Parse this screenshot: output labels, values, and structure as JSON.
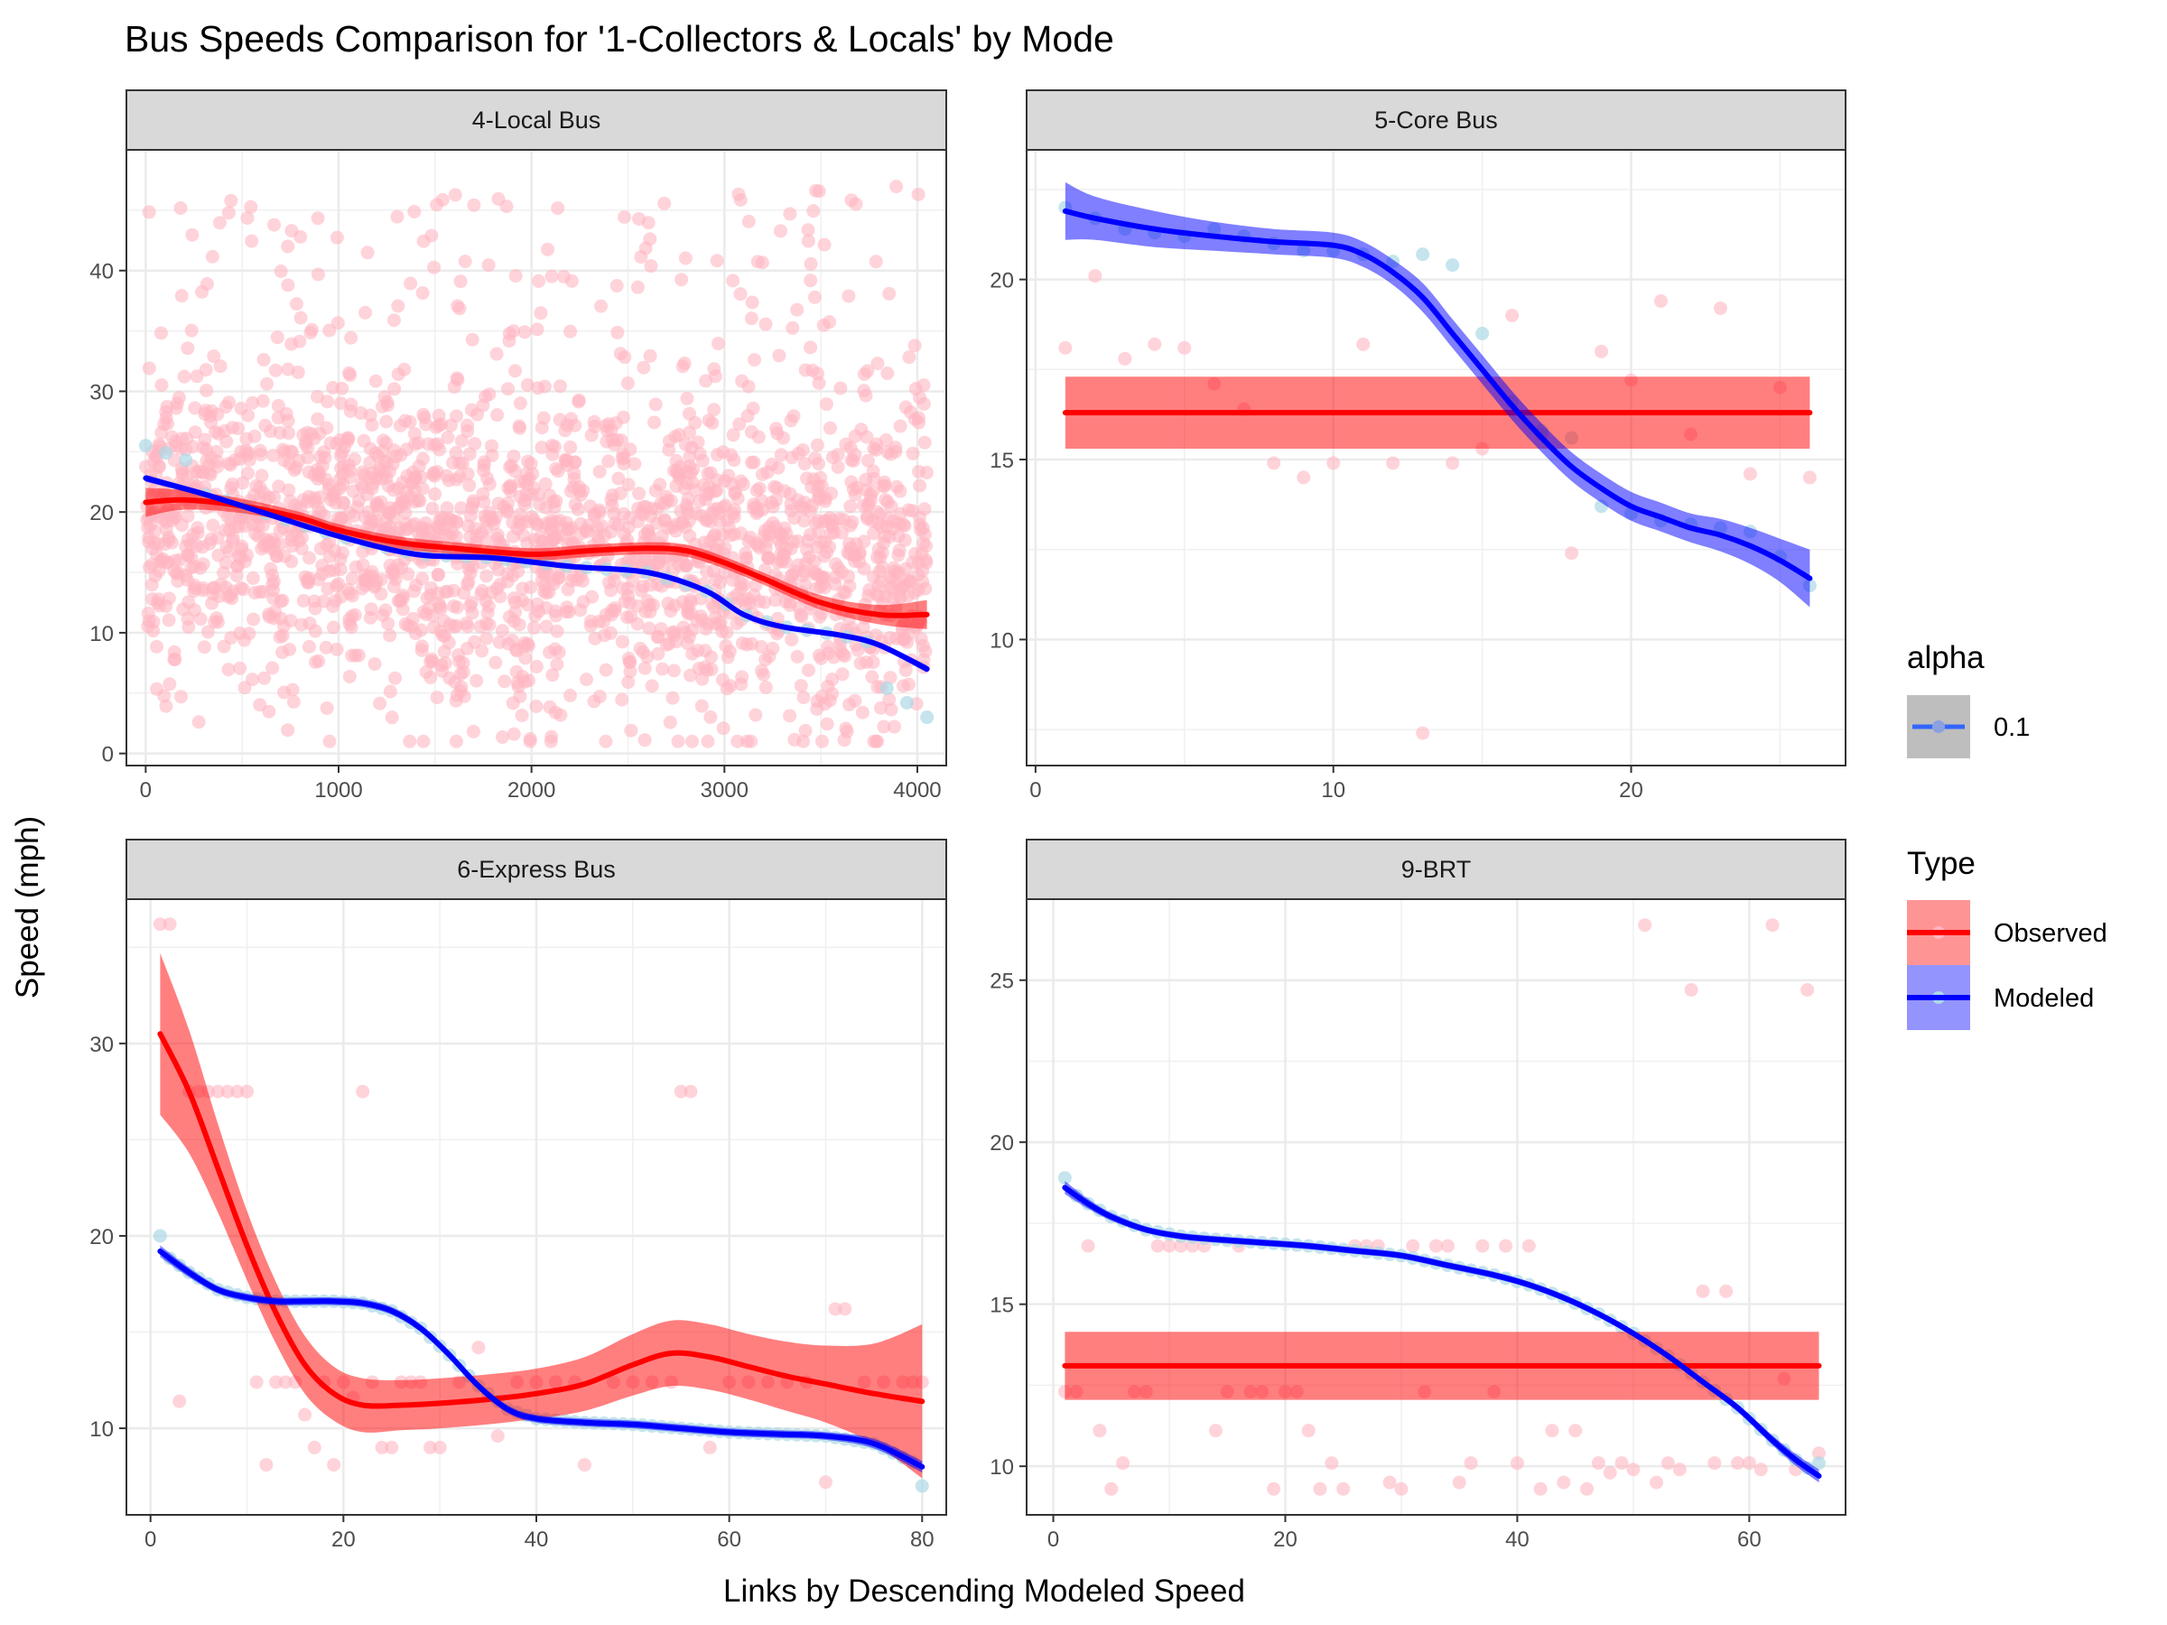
{
  "chart_data": {
    "type": "scatter",
    "title": "Bus Speeds Comparison for '1-Collectors & Locals' by Mode",
    "xlabel": "Links by Descending Modeled Speed",
    "ylabel": "Speed (mph)",
    "legend_placement": "right",
    "grid": true,
    "colors": {
      "observed_points": "#ffb6c1",
      "modeled_points": "#add8e6",
      "observed_line": "#ff0000",
      "modeled_line": "#0000ff",
      "observed_band": "#ff0000",
      "modeled_band": "#0000ff"
    },
    "legends": {
      "alpha": {
        "title": "alpha",
        "entries": [
          "0.1"
        ]
      },
      "type": {
        "title": "Type",
        "entries": [
          "Observed",
          "Modeled"
        ]
      }
    },
    "facets": [
      {
        "name": "4-Local Bus",
        "xlim": [
          -100,
          4150
        ],
        "ylim": [
          -1,
          50
        ],
        "x_ticks": [
          0,
          1000,
          2000,
          3000,
          4000
        ],
        "y_ticks": [
          0,
          10,
          20,
          30,
          40
        ],
        "observed_smooth": {
          "x": [
            0,
            200,
            500,
            800,
            1000,
            1300,
            1600,
            2000,
            2300,
            2600,
            2800,
            3000,
            3200,
            3500,
            3800,
            4050
          ],
          "y": [
            20.8,
            21,
            20.5,
            19.5,
            18.5,
            17.5,
            17,
            16.5,
            16.8,
            17,
            16.8,
            15.8,
            14.5,
            12.5,
            11.5,
            11.5
          ],
          "band": [
            1.2,
            0.8,
            0.6,
            0.5,
            0.5,
            0.5,
            0.5,
            0.5,
            0.5,
            0.5,
            0.5,
            0.5,
            0.5,
            0.6,
            0.8,
            1.2
          ]
        },
        "modeled_smooth": {
          "x": [
            0,
            300,
            600,
            1000,
            1400,
            1800,
            2200,
            2600,
            2900,
            3100,
            3300,
            3600,
            3800,
            4050
          ],
          "y": [
            22.8,
            21.5,
            20,
            18,
            16.5,
            16.2,
            15.5,
            15,
            13.5,
            11.5,
            10.5,
            9.8,
            9,
            7
          ],
          "band": [
            0.3,
            0.2,
            0.2,
            0.2,
            0.2,
            0.2,
            0.2,
            0.2,
            0.2,
            0.2,
            0.2,
            0.2,
            0.2,
            0.3
          ]
        },
        "observed_points": {
          "n": 2200,
          "xmax": 4050,
          "y_center": 19,
          "y_spread": 6.5,
          "y_min": 1,
          "y_max": 47.5
        },
        "modeled_points": {
          "n": 40,
          "xmax": 4050,
          "y_start": 25.5,
          "y_end": 3
        }
      },
      {
        "name": "5-Core Bus",
        "xlim": [
          -0.3,
          27.2
        ],
        "ylim": [
          6.5,
          23.6
        ],
        "x_ticks": [
          0,
          10,
          20
        ],
        "y_ticks": [
          10,
          15,
          20
        ],
        "observed_smooth": {
          "x": [
            1,
            26
          ],
          "y": [
            16.3,
            16.3
          ],
          "band": [
            1,
            1
          ]
        },
        "modeled_smooth": {
          "x": [
            1,
            2,
            4,
            6,
            8,
            10,
            11,
            12,
            13,
            14,
            15,
            16,
            17,
            18,
            19,
            20,
            21,
            22,
            23,
            24,
            25,
            26
          ],
          "y": [
            21.9,
            21.7,
            21.4,
            21.2,
            21.05,
            20.95,
            20.7,
            20.2,
            19.5,
            18.5,
            17.5,
            16.5,
            15.6,
            14.8,
            14.2,
            13.7,
            13.4,
            13.1,
            12.9,
            12.6,
            12.2,
            11.7
          ],
          "band": [
            0.8,
            0.6,
            0.5,
            0.4,
            0.35,
            0.35,
            0.35,
            0.35,
            0.4,
            0.4,
            0.4,
            0.4,
            0.4,
            0.4,
            0.4,
            0.4,
            0.4,
            0.4,
            0.45,
            0.5,
            0.6,
            0.8
          ]
        },
        "observed_points": {
          "x": [
            1,
            2,
            3,
            4,
            5,
            6,
            7,
            8,
            9,
            10,
            11,
            12,
            13,
            14,
            15,
            16,
            17,
            18,
            19,
            20,
            21,
            22,
            23,
            24,
            25,
            26
          ],
          "y": [
            18.1,
            20.1,
            17.8,
            18.2,
            18.1,
            17.1,
            16.4,
            14.9,
            14.5,
            14.9,
            18.2,
            14.9,
            7.4,
            14.9,
            15.3,
            19,
            15.7,
            12.4,
            18,
            17.2,
            19.4,
            15.7,
            19.2,
            14.6,
            17,
            14.5
          ]
        },
        "modeled_points": {
          "x": [
            1,
            2,
            3,
            4,
            5,
            6,
            7,
            8,
            9,
            10,
            11,
            12,
            13,
            14,
            15,
            16,
            17,
            18,
            19,
            20,
            21,
            22,
            23,
            24,
            25,
            26
          ],
          "y": [
            22,
            21.7,
            21.4,
            21.3,
            21.2,
            21.4,
            21.2,
            21,
            20.8,
            20.8,
            20.7,
            20.5,
            20.7,
            20.4,
            18.5,
            16.6,
            15.8,
            15.6,
            13.7,
            13.5,
            13.3,
            13.2,
            13.1,
            13,
            12.3,
            11.5
          ]
        }
      },
      {
        "name": "6-Express Bus",
        "xlim": [
          -2.5,
          82.5
        ],
        "ylim": [
          5.5,
          37.5
        ],
        "x_ticks": [
          0,
          20,
          40,
          60,
          80
        ],
        "y_ticks": [
          10,
          20,
          30
        ],
        "observed_smooth": {
          "x": [
            1,
            4,
            7,
            10,
            13,
            16,
            19,
            22,
            26,
            30,
            35,
            40,
            45,
            50,
            54,
            58,
            62,
            66,
            70,
            75,
            80
          ],
          "y": [
            30.5,
            27.5,
            23.5,
            19.5,
            16,
            13.3,
            11.8,
            11.2,
            11.2,
            11.3,
            11.5,
            11.8,
            12.3,
            13.3,
            13.9,
            13.7,
            13.2,
            12.7,
            12.3,
            11.8,
            11.4
          ],
          "band": [
            4.2,
            3.2,
            2.3,
            1.8,
            1.6,
            1.5,
            1.4,
            1.4,
            1.3,
            1.3,
            1.3,
            1.3,
            1.4,
            1.6,
            1.7,
            1.7,
            1.7,
            1.8,
            2,
            2.6,
            4
          ]
        },
        "modeled_smooth": {
          "x": [
            1,
            4,
            7,
            10,
            13,
            16,
            19,
            22,
            25,
            28,
            31,
            34,
            37,
            40,
            45,
            50,
            55,
            60,
            65,
            70,
            75,
            80
          ],
          "y": [
            19.2,
            18.1,
            17.2,
            16.8,
            16.6,
            16.6,
            16.6,
            16.5,
            16.1,
            15.2,
            13.8,
            12.2,
            11,
            10.5,
            10.3,
            10.2,
            10,
            9.8,
            9.7,
            9.6,
            9.2,
            8
          ],
          "band": [
            0.3,
            0.25,
            0.2,
            0.2,
            0.2,
            0.2,
            0.2,
            0.2,
            0.2,
            0.2,
            0.2,
            0.2,
            0.2,
            0.2,
            0.2,
            0.2,
            0.2,
            0.2,
            0.2,
            0.2,
            0.25,
            0.3
          ]
        },
        "observed_points": {
          "x": [
            1,
            2,
            3,
            4,
            5,
            6,
            7,
            8,
            9,
            10,
            11,
            12,
            13,
            14,
            15,
            16,
            17,
            18,
            19,
            20,
            21,
            22,
            23,
            24,
            25,
            26,
            27,
            28,
            29,
            30,
            32,
            34,
            36,
            38,
            40,
            42,
            44,
            45,
            48,
            50,
            52,
            54,
            55,
            56,
            58,
            60,
            62,
            64,
            66,
            68,
            70,
            71,
            72,
            74,
            76,
            78,
            79,
            80
          ],
          "y": [
            36.2,
            36.2,
            11.4,
            27.5,
            27.5,
            27.5,
            27.5,
            27.5,
            27.5,
            27.5,
            12.4,
            8.1,
            12.4,
            12.4,
            12.4,
            10.7,
            9,
            12.4,
            8.1,
            12.4,
            11.6,
            27.5,
            12.4,
            9,
            9,
            12.4,
            12.4,
            12.4,
            9,
            9,
            12.4,
            14.2,
            9.6,
            12.4,
            12.4,
            12.4,
            12.4,
            8.1,
            12.4,
            12.4,
            12.4,
            12.4,
            27.5,
            27.5,
            9,
            12.4,
            12.4,
            12.4,
            12.4,
            12.4,
            7.2,
            16.2,
            16.2,
            12.4,
            12.4,
            12.4,
            12.4,
            12.4
          ]
        },
        "modeled_points": {
          "n": 80,
          "from_smooth": true,
          "first_x": 1,
          "first_y": 20,
          "last_x": 80,
          "last_y": 7
        }
      },
      {
        "name": "9-BRT",
        "xlim": [
          -2.3,
          68.3
        ],
        "ylim": [
          8.5,
          27.5
        ],
        "x_ticks": [
          0,
          20,
          40,
          60
        ],
        "y_ticks": [
          10,
          15,
          20,
          25
        ],
        "observed_smooth": {
          "x": [
            1,
            66
          ],
          "y": [
            13.1,
            13.1
          ],
          "band": [
            1.05,
            1.05
          ]
        },
        "modeled_smooth": {
          "x": [
            1,
            3,
            5,
            8,
            11,
            14,
            18,
            22,
            26,
            30,
            34,
            38,
            41,
            44,
            47,
            50,
            53,
            56,
            59,
            62,
            64,
            66
          ],
          "y": [
            18.6,
            18.1,
            17.7,
            17.3,
            17.1,
            17,
            16.9,
            16.8,
            16.65,
            16.5,
            16.2,
            15.9,
            15.6,
            15.2,
            14.7,
            14.1,
            13.4,
            12.6,
            11.8,
            10.8,
            10.2,
            9.7
          ],
          "band": [
            0.2,
            0.15,
            0.12,
            0.1,
            0.1,
            0.1,
            0.1,
            0.1,
            0.1,
            0.1,
            0.1,
            0.1,
            0.1,
            0.1,
            0.1,
            0.1,
            0.1,
            0.1,
            0.12,
            0.15,
            0.18,
            0.2
          ]
        },
        "observed_points": {
          "x": [
            1,
            2,
            3,
            4,
            5,
            6,
            7,
            8,
            9,
            10,
            11,
            12,
            13,
            14,
            15,
            16,
            17,
            18,
            19,
            20,
            21,
            22,
            23,
            24,
            25,
            26,
            27,
            28,
            29,
            30,
            31,
            32,
            33,
            34,
            35,
            36,
            37,
            38,
            39,
            40,
            41,
            42,
            43,
            44,
            45,
            46,
            47,
            48,
            49,
            50,
            51,
            52,
            53,
            54,
            55,
            56,
            57,
            58,
            59,
            60,
            61,
            62,
            63,
            64,
            65,
            66
          ],
          "y": [
            12.3,
            12.3,
            16.8,
            11.1,
            9.3,
            10.1,
            12.3,
            12.3,
            16.8,
            16.8,
            16.8,
            16.8,
            16.8,
            11.1,
            12.3,
            16.8,
            12.3,
            12.3,
            9.3,
            12.3,
            12.3,
            11.1,
            9.3,
            10.1,
            9.3,
            16.8,
            16.8,
            16.8,
            9.5,
            9.3,
            16.8,
            12.3,
            16.8,
            16.8,
            9.5,
            10.1,
            16.8,
            12.3,
            16.8,
            10.1,
            16.8,
            9.3,
            11.1,
            9.5,
            11.1,
            9.3,
            10.1,
            9.8,
            10.1,
            9.9,
            26.7,
            9.5,
            10.1,
            9.9,
            24.7,
            15.4,
            10.1,
            15.4,
            10.1,
            10.1,
            9.9,
            26.7,
            12.7,
            9.9,
            24.7,
            10.4
          ]
        },
        "modeled_points": {
          "n": 66,
          "from_smooth": true,
          "first_x": 1,
          "first_y": 18.9,
          "last_x": 66,
          "last_y": 10.1
        }
      }
    ]
  }
}
